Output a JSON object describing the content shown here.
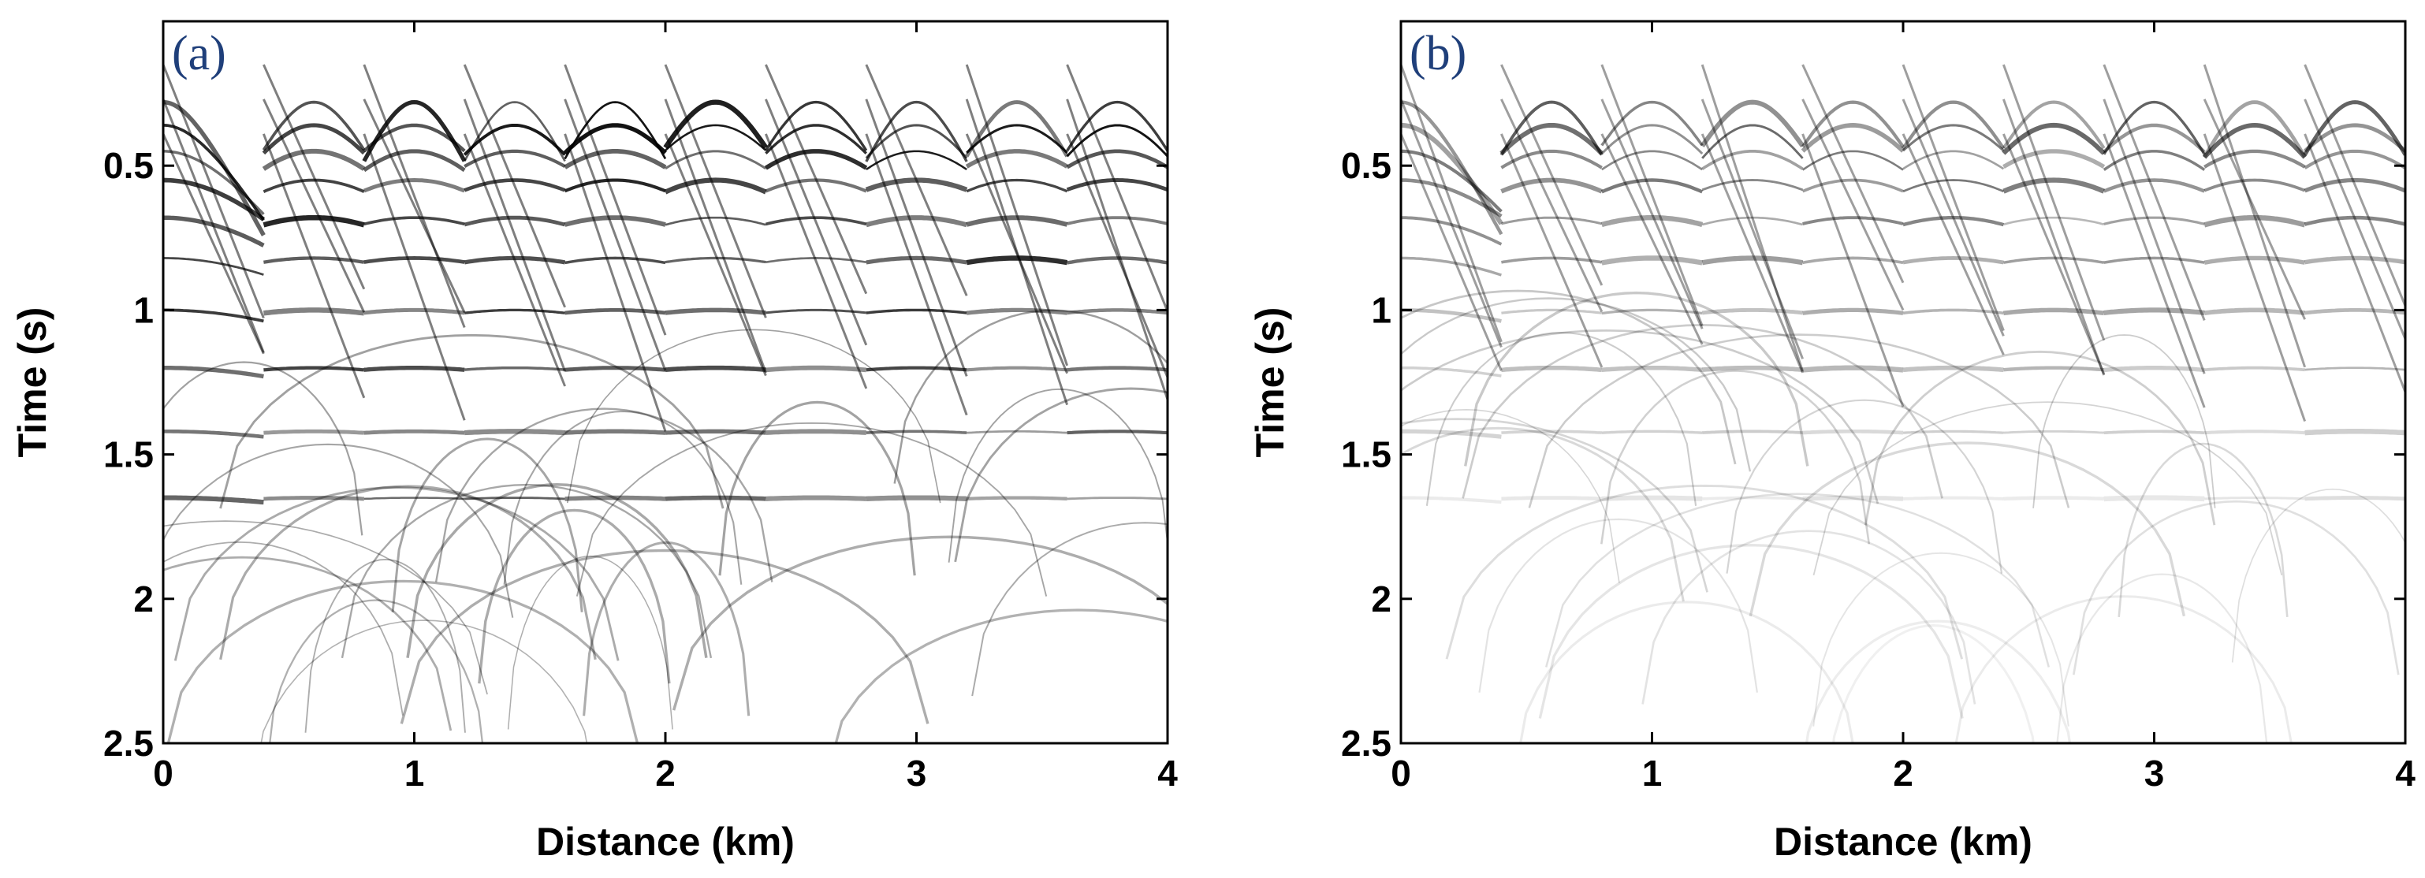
{
  "colors": {
    "trace": "#000000",
    "panel_label": "#1f3f7a",
    "background": "#ffffff"
  },
  "chart_data": [
    {
      "type": "heatmap",
      "panel_label": "(a)",
      "description_kind": "seismic shot gather image",
      "xlabel": "Distance (km)",
      "ylabel": "Time (s)",
      "xlim": [
        0,
        4
      ],
      "ylim": [
        2.5,
        0
      ],
      "xticks": [
        0,
        1,
        2,
        3,
        4
      ],
      "xtick_labels": [
        "0",
        "1",
        "2",
        "3",
        "4"
      ],
      "yticks": [
        0.5,
        1,
        1.5,
        2,
        2.5
      ],
      "ytick_labels": [
        "0.5",
        "1",
        "1.5",
        "2",
        "2.5"
      ],
      "shot_boundaries_km": [
        0,
        0.4,
        0.8,
        1.2,
        1.6,
        2.0,
        2.4,
        2.8,
        3.2,
        3.6,
        4.0
      ],
      "event_amplitude": 1.0,
      "deep_fade": 0.35
    },
    {
      "type": "heatmap",
      "panel_label": "(b)",
      "description_kind": "seismic shot gather image",
      "xlabel": "Distance (km)",
      "ylabel": "Time (s)",
      "xlim": [
        0,
        4
      ],
      "ylim": [
        2.5,
        0
      ],
      "xticks": [
        0,
        1,
        2,
        3,
        4
      ],
      "xtick_labels": [
        "0",
        "1",
        "2",
        "3",
        "4"
      ],
      "yticks": [
        0.5,
        1,
        1.5,
        2,
        2.5
      ],
      "ytick_labels": [
        "0.5",
        "1",
        "1.5",
        "2",
        "2.5"
      ],
      "shot_boundaries_km": [
        0,
        0.4,
        0.8,
        1.2,
        1.6,
        2.0,
        2.4,
        2.8,
        3.2,
        3.6,
        4.0
      ],
      "event_amplitude": 0.75,
      "deep_fade": 0.85
    }
  ]
}
